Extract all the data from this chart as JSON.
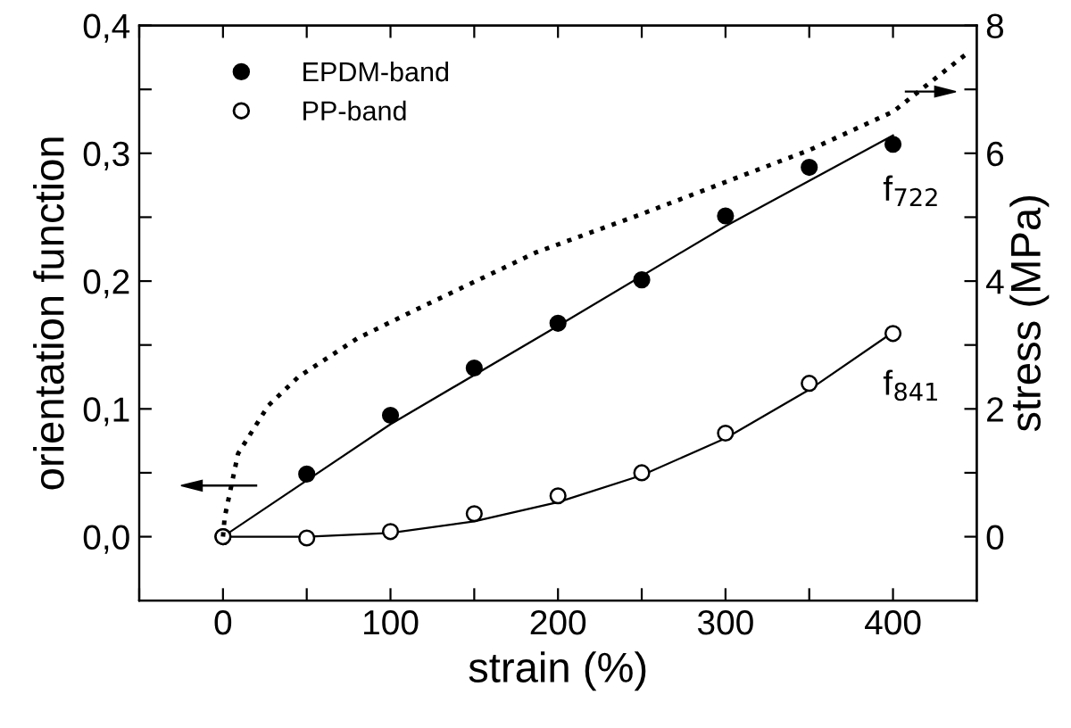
{
  "chart_data": {
    "type": "scatter",
    "xlabel": "strain (%)",
    "ylabel": "orientation function",
    "y2label": "stress (MPa)",
    "xlim": [
      -50,
      450
    ],
    "xticks": [
      0,
      100,
      200,
      300,
      400,
      {
        "value": -50,
        "label": null
      },
      {
        "value": 50,
        "label": null
      },
      {
        "value": 150,
        "label": null
      },
      {
        "value": 250,
        "label": null
      },
      {
        "value": 350,
        "label": null
      }
    ],
    "ylim": [
      -0.05,
      0.4
    ],
    "yticks": [
      {
        "value": 0,
        "label": "0,0"
      },
      {
        "value": 0.1,
        "label": "0,1"
      },
      {
        "value": 0.2,
        "label": "0,2"
      },
      {
        "value": 0.3,
        "label": "0,3"
      },
      {
        "value": 0.4,
        "label": "0,4"
      },
      {
        "value": 0.05,
        "label": null
      },
      {
        "value": 0.15,
        "label": null
      },
      {
        "value": 0.25,
        "label": null
      },
      {
        "value": 0.35,
        "label": null
      }
    ],
    "y2lim": [
      -1,
      8
    ],
    "y2ticks": [
      0,
      2,
      4,
      6,
      8,
      {
        "value": 1,
        "label": null
      },
      {
        "value": 3,
        "label": null
      },
      {
        "value": 5,
        "label": null
      },
      {
        "value": 7,
        "label": null
      }
    ],
    "legend": "top left",
    "grid": false,
    "series": [
      {
        "name": "EPDM-band",
        "marker": "circle",
        "color": "#000000",
        "x": [
          0,
          50,
          100,
          150,
          200,
          250,
          300,
          350,
          400
        ],
        "values": [
          0,
          0.049,
          0.095,
          0.132,
          0.167,
          0.201,
          0.251,
          0.289,
          0.307
        ]
      },
      {
        "name": "PP-band",
        "marker": "circle",
        "color": "#000000",
        "x": [
          0,
          50,
          100,
          150,
          200,
          250,
          300,
          350,
          400
        ],
        "values": [
          0,
          -0.001,
          0.004,
          0.018,
          0.032,
          0.05,
          0.081,
          0.12,
          0.159
        ]
      },
      {
        "type": "line",
        "color": "#000000",
        "line_style": "solid",
        "x": [
          0,
          100,
          200,
          300,
          400
        ],
        "values": [
          0,
          0.088,
          0.165,
          0.243,
          0.314
        ]
      },
      {
        "type": "line",
        "color": "#000000",
        "line_style": "solid",
        "x": [
          0,
          50,
          100,
          150,
          200,
          250,
          300,
          350,
          400
        ],
        "values": [
          0,
          0,
          0.003,
          0.012,
          0.027,
          0.048,
          0.077,
          0.115,
          0.16
        ]
      },
      {
        "type": "line",
        "color": "#000000",
        "line_style": "dotted",
        "axis": "y2",
        "x": [
          0,
          1,
          9,
          27,
          45,
          80,
          115,
          151,
          187,
          250,
          350,
          400,
          446
        ],
        "values": [
          0,
          0.3,
          1.3,
          2.05,
          2.5,
          3.1,
          3.55,
          4.0,
          4.45,
          5.05,
          6.05,
          6.65,
          7.6
        ]
      }
    ],
    "annotations": [
      "f$_{722}$",
      "f$_{841}$"
    ]
  }
}
